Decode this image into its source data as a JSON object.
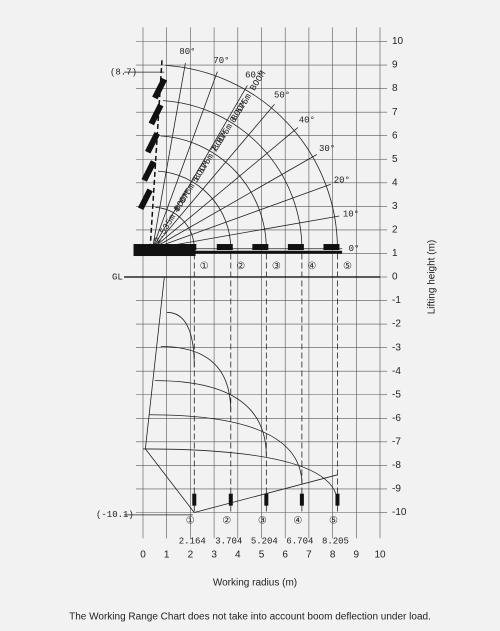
{
  "y_ticks": [
    "10",
    "9",
    "8",
    "7",
    "6",
    "5",
    "4",
    "3",
    "2",
    "1",
    "0",
    "-1",
    "-2",
    "-3",
    "-4",
    "-5",
    "-6",
    "-7",
    "-8",
    "-9",
    "-10"
  ],
  "x_ticks": [
    "0",
    "1",
    "2",
    "3",
    "4",
    "5",
    "6",
    "7",
    "8",
    "9",
    "10"
  ],
  "left_labels": {
    "max_height": "(8.7)",
    "ground": "GL",
    "min_height": "(-10.1)"
  },
  "angles": [
    "0°",
    "10°",
    "20°",
    "30°",
    "40°",
    "50°",
    "60°",
    "70°",
    "80°"
  ],
  "booms": [
    "2.535m BOOM",
    "4.075m BOOM",
    "5.575m BOOM",
    "7.075m BOOM",
    "8.575m BOOM"
  ],
  "hook_radii": [
    "2.164",
    "3.704",
    "5.204",
    "6.704",
    "8.205"
  ],
  "hook_numbers": [
    "①",
    "②",
    "③",
    "④",
    "⑤"
  ],
  "y_axis_title": "Lifting height (m)",
  "x_axis_title": "Working radius (m)",
  "note": "The Working Range Chart does not take into account boom deflection under load."
}
